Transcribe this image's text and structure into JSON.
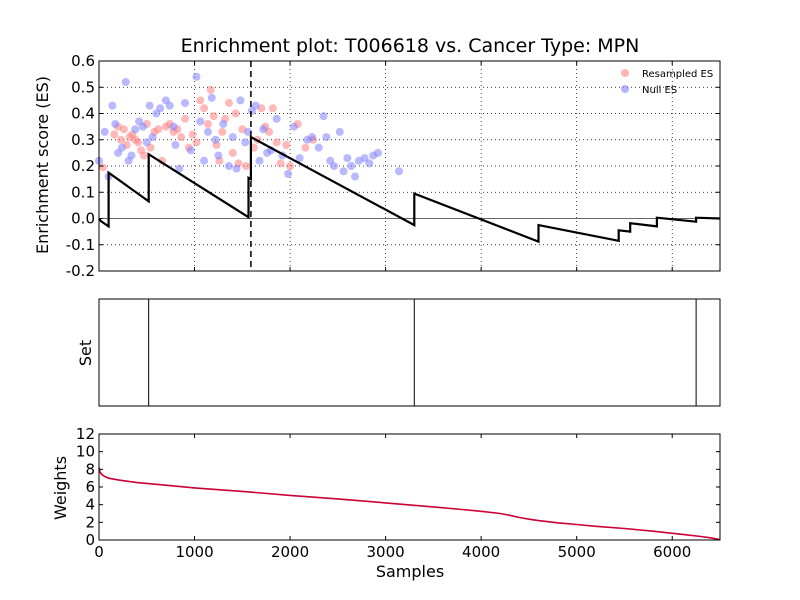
{
  "chart_data": [
    {
      "type": "line+scatter",
      "title": "Enrichment plot: T006618 vs. Cancer Type: MPN",
      "ylabel": "Enrichment score (ES)",
      "xlim": [
        0,
        6500
      ],
      "ylim": [
        -0.2,
        0.6
      ],
      "yticks": [
        "-0.2",
        "-0.1",
        "0.0",
        "0.1",
        "0.2",
        "0.3",
        "0.4",
        "0.5",
        "0.6"
      ],
      "xticks": [
        0,
        1000,
        2000,
        3000,
        4000,
        5000,
        6000
      ],
      "grid": true,
      "legend_position": "top-right",
      "legend": [
        {
          "label": "Resampled ES",
          "color": "#ff8080"
        },
        {
          "label": "Null ES",
          "color": "#8080ff"
        }
      ],
      "max_es_position": 1590,
      "es_curve": [
        [
          0,
          0.0
        ],
        [
          20,
          -0.01
        ],
        [
          100,
          -0.03
        ],
        [
          100,
          0.175
        ],
        [
          520,
          0.065
        ],
        [
          520,
          0.245
        ],
        [
          1565,
          0.005
        ],
        [
          1565,
          0.155
        ],
        [
          1590,
          0.15
        ],
        [
          1590,
          0.31
        ],
        [
          3300,
          -0.025
        ],
        [
          3300,
          0.095
        ],
        [
          4600,
          -0.088
        ],
        [
          4600,
          -0.025
        ],
        [
          5440,
          -0.085
        ],
        [
          5440,
          -0.045
        ],
        [
          5560,
          -0.05
        ],
        [
          5560,
          -0.018
        ],
        [
          5840,
          -0.03
        ],
        [
          5840,
          0.003
        ],
        [
          6250,
          -0.012
        ],
        [
          6250,
          0.003
        ],
        [
          6500,
          0.0
        ]
      ],
      "resampled_es": [
        [
          40,
          0.195
        ],
        [
          160,
          0.32
        ],
        [
          200,
          0.35
        ],
        [
          230,
          0.3
        ],
        [
          260,
          0.34
        ],
        [
          290,
          0.28
        ],
        [
          320,
          0.31
        ],
        [
          350,
          0.32
        ],
        [
          380,
          0.3
        ],
        [
          410,
          0.29
        ],
        [
          440,
          0.26
        ],
        [
          470,
          0.24
        ],
        [
          500,
          0.36
        ],
        [
          540,
          0.27
        ],
        [
          580,
          0.33
        ],
        [
          620,
          0.34
        ],
        [
          660,
          0.22
        ],
        [
          700,
          0.35
        ],
        [
          740,
          0.36
        ],
        [
          780,
          0.33
        ],
        [
          820,
          0.34
        ],
        [
          860,
          0.31
        ],
        [
          900,
          0.38
        ],
        [
          940,
          0.27
        ],
        [
          980,
          0.32
        ],
        [
          1020,
          0.29
        ],
        [
          1060,
          0.45
        ],
        [
          1100,
          0.42
        ],
        [
          1140,
          0.36
        ],
        [
          1170,
          0.49
        ],
        [
          1200,
          0.39
        ],
        [
          1230,
          0.28
        ],
        [
          1260,
          0.22
        ],
        [
          1290,
          0.33
        ],
        [
          1320,
          0.38
        ],
        [
          1360,
          0.44
        ],
        [
          1400,
          0.25
        ],
        [
          1430,
          0.4
        ],
        [
          1460,
          0.21
        ],
        [
          1500,
          0.34
        ],
        [
          1540,
          0.2
        ],
        [
          1620,
          0.27
        ],
        [
          1660,
          0.3
        ],
        [
          1700,
          0.42
        ],
        [
          1740,
          0.35
        ],
        [
          1780,
          0.33
        ],
        [
          1820,
          0.42
        ],
        [
          1860,
          0.29
        ],
        [
          1900,
          0.21
        ],
        [
          1960,
          0.28
        ],
        [
          2000,
          0.2
        ],
        [
          2080,
          0.36
        ],
        [
          2160,
          0.27
        ],
        [
          2240,
          0.3
        ]
      ],
      "null_es": [
        [
          0,
          0.22
        ],
        [
          60,
          0.33
        ],
        [
          100,
          0.16
        ],
        [
          140,
          0.43
        ],
        [
          170,
          0.36
        ],
        [
          200,
          0.25
        ],
        [
          240,
          0.27
        ],
        [
          280,
          0.52
        ],
        [
          310,
          0.22
        ],
        [
          340,
          0.24
        ],
        [
          380,
          0.34
        ],
        [
          420,
          0.37
        ],
        [
          460,
          0.35
        ],
        [
          500,
          0.29
        ],
        [
          530,
          0.43
        ],
        [
          560,
          0.31
        ],
        [
          600,
          0.4
        ],
        [
          640,
          0.42
        ],
        [
          700,
          0.45
        ],
        [
          740,
          0.43
        ],
        [
          780,
          0.35
        ],
        [
          800,
          0.28
        ],
        [
          840,
          0.19
        ],
        [
          900,
          0.44
        ],
        [
          960,
          0.26
        ],
        [
          1020,
          0.54
        ],
        [
          1060,
          0.37
        ],
        [
          1100,
          0.22
        ],
        [
          1140,
          0.33
        ],
        [
          1180,
          0.46
        ],
        [
          1220,
          0.3
        ],
        [
          1250,
          0.24
        ],
        [
          1300,
          0.36
        ],
        [
          1360,
          0.2
        ],
        [
          1400,
          0.31
        ],
        [
          1440,
          0.19
        ],
        [
          1480,
          0.45
        ],
        [
          1530,
          0.29
        ],
        [
          1560,
          0.33
        ],
        [
          1600,
          0.41
        ],
        [
          1640,
          0.43
        ],
        [
          1680,
          0.22
        ],
        [
          1720,
          0.34
        ],
        [
          1760,
          0.25
        ],
        [
          1800,
          0.26
        ],
        [
          1860,
          0.38
        ],
        [
          1920,
          0.24
        ],
        [
          1980,
          0.17
        ],
        [
          2040,
          0.35
        ],
        [
          2100,
          0.23
        ],
        [
          2180,
          0.3
        ],
        [
          2230,
          0.31
        ],
        [
          2300,
          0.27
        ],
        [
          2350,
          0.39
        ],
        [
          2380,
          0.31
        ],
        [
          2420,
          0.22
        ],
        [
          2460,
          0.2
        ],
        [
          2520,
          0.33
        ],
        [
          2560,
          0.18
        ],
        [
          2600,
          0.23
        ],
        [
          2640,
          0.2
        ],
        [
          2680,
          0.16
        ],
        [
          2720,
          0.22
        ],
        [
          2780,
          0.23
        ],
        [
          2830,
          0.21
        ],
        [
          2870,
          0.24
        ],
        [
          2920,
          0.25
        ],
        [
          3140,
          0.18
        ]
      ]
    },
    {
      "type": "event-lines",
      "ylabel": "Set",
      "xlim": [
        0,
        6500
      ],
      "positions": [
        520,
        3300,
        6250
      ]
    },
    {
      "type": "line",
      "xlabel": "Samples",
      "ylabel": "Weights",
      "xlim": [
        0,
        6500
      ],
      "ylim": [
        0,
        12
      ],
      "yticks": [
        "0",
        "2",
        "4",
        "6",
        "8",
        "10",
        "12"
      ],
      "xticks": [
        "0",
        "1000",
        "2000",
        "3000",
        "4000",
        "5000",
        "6000"
      ],
      "color": "#cc0033",
      "x": [
        0,
        10,
        30,
        60,
        100,
        200,
        400,
        700,
        1000,
        1500,
        2000,
        2500,
        3000,
        3500,
        3800,
        4000,
        4200,
        4300,
        4400,
        4500,
        4600,
        4800,
        5000,
        5200,
        5500,
        5800,
        6100,
        6300,
        6400,
        6450,
        6500
      ],
      "y": [
        8.2,
        7.7,
        7.4,
        7.2,
        7.0,
        6.8,
        6.5,
        6.2,
        5.9,
        5.5,
        5.05,
        4.65,
        4.2,
        3.75,
        3.45,
        3.25,
        3.0,
        2.8,
        2.55,
        2.35,
        2.2,
        1.95,
        1.75,
        1.55,
        1.3,
        1.0,
        0.65,
        0.4,
        0.25,
        0.15,
        0.05
      ]
    }
  ]
}
